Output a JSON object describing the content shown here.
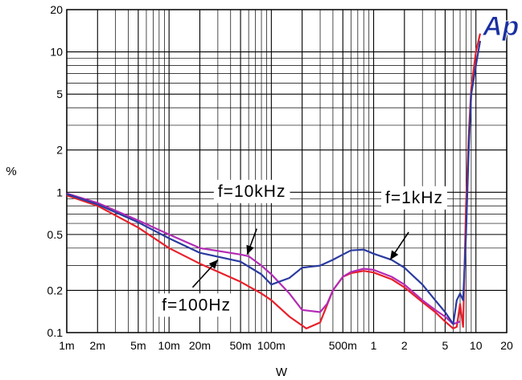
{
  "chart_data": {
    "type": "line",
    "xlabel": "W",
    "ylabel": "%",
    "x_scale": "log",
    "y_scale": "log",
    "xlim": [
      0.001,
      20
    ],
    "ylim": [
      0.1,
      20
    ],
    "grid": true,
    "x_ticks": [
      {
        "v": 0.001,
        "label": "1m"
      },
      {
        "v": 0.002,
        "label": "2m"
      },
      {
        "v": 0.005,
        "label": "5m"
      },
      {
        "v": 0.01,
        "label": "10m"
      },
      {
        "v": 0.02,
        "label": "20m"
      },
      {
        "v": 0.05,
        "label": "50m"
      },
      {
        "v": 0.1,
        "label": "100m"
      },
      {
        "v": 0.5,
        "label": "500m"
      },
      {
        "v": 1,
        "label": "1"
      },
      {
        "v": 2,
        "label": "2"
      },
      {
        "v": 5,
        "label": "5"
      },
      {
        "v": 10,
        "label": "10"
      },
      {
        "v": 20,
        "label": "20"
      }
    ],
    "y_ticks": [
      {
        "v": 0.1,
        "label": "0.1"
      },
      {
        "v": 0.2,
        "label": "0.2"
      },
      {
        "v": 0.5,
        "label": "0.5"
      },
      {
        "v": 1,
        "label": "1"
      },
      {
        "v": 2,
        "label": "2"
      },
      {
        "v": 5,
        "label": "5"
      },
      {
        "v": 10,
        "label": "10"
      },
      {
        "v": 20,
        "label": "20"
      }
    ],
    "series": [
      {
        "color": "#e8202a",
        "points": [
          [
            0.001,
            0.95
          ],
          [
            0.002,
            0.8
          ],
          [
            0.005,
            0.56
          ],
          [
            0.01,
            0.4
          ],
          [
            0.02,
            0.31
          ],
          [
            0.05,
            0.23
          ],
          [
            0.08,
            0.19
          ],
          [
            0.1,
            0.17
          ],
          [
            0.15,
            0.13
          ],
          [
            0.22,
            0.107
          ],
          [
            0.3,
            0.118
          ],
          [
            0.4,
            0.2
          ],
          [
            0.5,
            0.25
          ],
          [
            0.6,
            0.265
          ],
          [
            0.8,
            0.275
          ],
          [
            1,
            0.268
          ],
          [
            1.5,
            0.24
          ],
          [
            2,
            0.21
          ],
          [
            3,
            0.165
          ],
          [
            4,
            0.14
          ],
          [
            5,
            0.12
          ],
          [
            6,
            0.107
          ],
          [
            6.5,
            0.11
          ],
          [
            7,
            0.16
          ],
          [
            7.5,
            0.11
          ],
          [
            8,
            0.8
          ],
          [
            8.5,
            2.5
          ],
          [
            9,
            5.5
          ],
          [
            10,
            10
          ],
          [
            11,
            13.5
          ]
        ]
      },
      {
        "color": "#b32bb5",
        "points": [
          [
            0.001,
            0.98
          ],
          [
            0.002,
            0.84
          ],
          [
            0.005,
            0.63
          ],
          [
            0.01,
            0.5
          ],
          [
            0.02,
            0.4
          ],
          [
            0.05,
            0.36
          ],
          [
            0.06,
            0.35
          ],
          [
            0.08,
            0.3
          ],
          [
            0.1,
            0.26
          ],
          [
            0.15,
            0.19
          ],
          [
            0.2,
            0.145
          ],
          [
            0.3,
            0.14
          ],
          [
            0.35,
            0.16
          ],
          [
            0.4,
            0.2
          ],
          [
            0.5,
            0.25
          ],
          [
            0.6,
            0.27
          ],
          [
            0.8,
            0.285
          ],
          [
            1,
            0.28
          ],
          [
            1.5,
            0.25
          ],
          [
            2,
            0.22
          ],
          [
            3,
            0.17
          ],
          [
            4,
            0.145
          ],
          [
            5,
            0.13
          ],
          [
            6,
            0.115
          ],
          [
            7,
            0.12
          ]
        ]
      },
      {
        "color": "#2b3aa0",
        "points": [
          [
            0.001,
            0.97
          ],
          [
            0.002,
            0.82
          ],
          [
            0.005,
            0.61
          ],
          [
            0.01,
            0.47
          ],
          [
            0.02,
            0.37
          ],
          [
            0.05,
            0.32
          ],
          [
            0.08,
            0.26
          ],
          [
            0.1,
            0.22
          ],
          [
            0.15,
            0.245
          ],
          [
            0.2,
            0.29
          ],
          [
            0.3,
            0.3
          ],
          [
            0.4,
            0.33
          ],
          [
            0.5,
            0.36
          ],
          [
            0.6,
            0.385
          ],
          [
            0.8,
            0.39
          ],
          [
            1,
            0.365
          ],
          [
            1.5,
            0.33
          ],
          [
            2,
            0.29
          ],
          [
            3,
            0.22
          ],
          [
            4,
            0.17
          ],
          [
            5,
            0.14
          ],
          [
            6,
            0.115
          ],
          [
            6.5,
            0.17
          ],
          [
            7,
            0.19
          ],
          [
            7.5,
            0.17
          ],
          [
            8,
            0.5
          ],
          [
            8.5,
            2
          ],
          [
            9,
            5
          ],
          [
            10,
            8
          ],
          [
            11,
            12
          ]
        ]
      }
    ],
    "annotations": [
      {
        "label": "f=10kHz",
        "box": [
          0.03,
          1.0
        ],
        "arrow_from": [
          0.072,
          0.55
        ],
        "arrow_to": [
          0.058,
          0.36
        ]
      },
      {
        "label": "f=1kHz",
        "box": [
          1.3,
          0.9
        ],
        "arrow_from": [
          2.2,
          0.52
        ],
        "arrow_to": [
          1.45,
          0.33
        ]
      },
      {
        "label": "f=100Hz",
        "box": [
          0.0085,
          0.155
        ],
        "arrow_from": [
          0.017,
          0.21
        ],
        "arrow_to": [
          0.03,
          0.33
        ]
      }
    ],
    "logo": "Ap"
  }
}
